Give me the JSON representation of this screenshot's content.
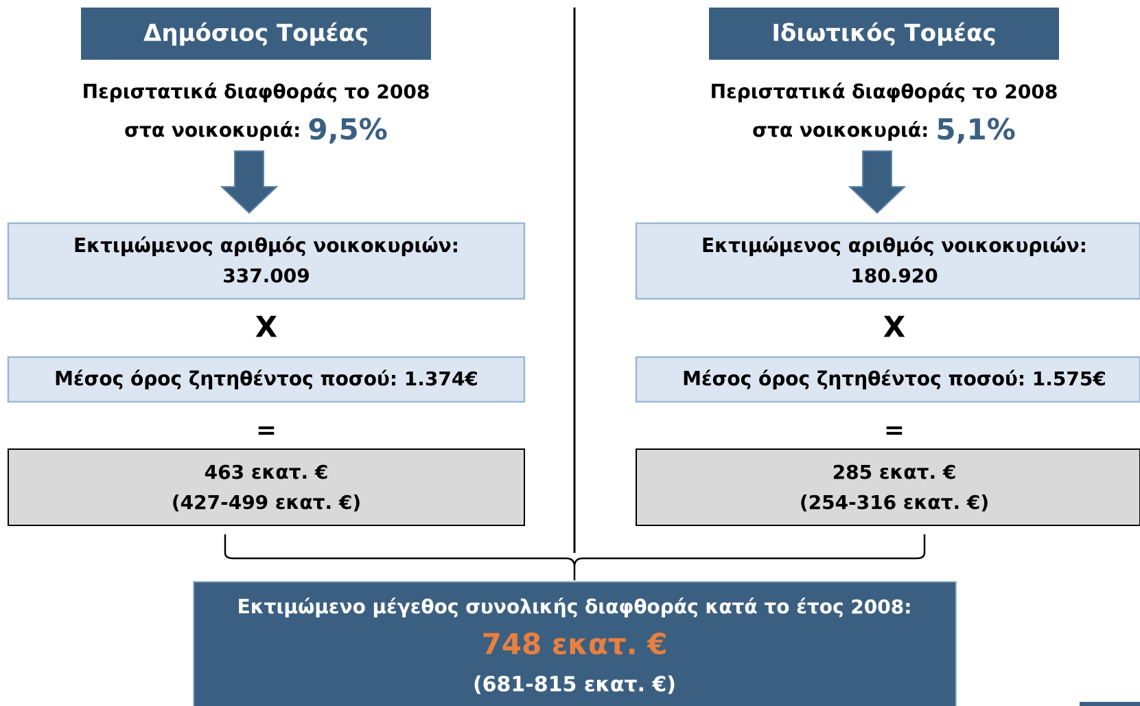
{
  "columns": [
    {
      "header": "Δημόσιος Τομέας",
      "incidents_line": "Περιστατικά διαφθοράς το 2008",
      "households_prefix": "στα νοικοκυριά:",
      "percentage": "9,5%",
      "households_label": "Εκτιμώμενος αριθμός νοικοκυριών:",
      "households_value": "337.009",
      "multiply": "X",
      "average": "Μέσος όρος ζητηθέντος ποσού: 1.374€",
      "equals": "=",
      "result": "463 εκατ. €",
      "range": "(427-499 εκατ. €)"
    },
    {
      "header": "Ιδιωτικός Τομέας",
      "incidents_line": "Περιστατικά διαφθοράς το 2008",
      "households_prefix": "στα νοικοκυριά:",
      "percentage": "5,1%",
      "households_label": "Εκτιμώμενος αριθμός νοικοκυριών:",
      "households_value": "180.920",
      "multiply": "X",
      "average": "Μέσος όρος ζητηθέντος ποσού: 1.575€",
      "equals": "=",
      "result": "285 εκατ. €",
      "range": "(254-316 εκατ. €)"
    }
  ],
  "summary": {
    "label": "Εκτιμώμενο μέγεθος συνολικής διαφθοράς κατά το έτος 2008:",
    "total": "748 εκατ. €",
    "range": "(681-815 εκατ. €)"
  }
}
